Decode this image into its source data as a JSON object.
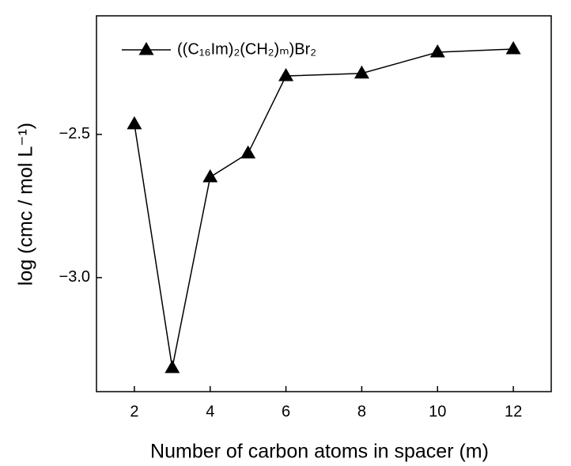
{
  "chart_data": {
    "type": "line",
    "x_label": "Number of carbon atoms in spacer (m)",
    "y_label": "log (cmc / mol L⁻¹)",
    "x": [
      2,
      3,
      4,
      5,
      6,
      8,
      10,
      12
    ],
    "series": [
      {
        "name": "((C₁₆Im)₂(CH₂)ₘ)Br₂",
        "color": "#000000",
        "values": [
          -2.464,
          -3.315,
          -2.649,
          -2.566,
          -2.296,
          -2.287,
          -2.213,
          -2.202
        ]
      }
    ],
    "xlim": [
      1,
      13
    ],
    "xticks": [
      2,
      4,
      6,
      8,
      10,
      12
    ],
    "ylim": [
      -3.398,
      -2.086
    ],
    "yticks": [
      {
        "value": -2.5,
        "label": "−2.5"
      },
      {
        "value": -3.0,
        "label": "−3.0"
      }
    ],
    "legend": "top-left",
    "marker": "triangle"
  }
}
